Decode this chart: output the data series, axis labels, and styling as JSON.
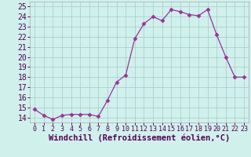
{
  "x": [
    0,
    1,
    2,
    3,
    4,
    5,
    6,
    7,
    8,
    9,
    10,
    11,
    12,
    13,
    14,
    15,
    16,
    17,
    18,
    19,
    20,
    21,
    22,
    23
  ],
  "y": [
    14.8,
    14.2,
    13.8,
    14.2,
    14.3,
    14.3,
    14.3,
    14.1,
    15.7,
    17.5,
    18.2,
    21.8,
    23.3,
    24.0,
    23.6,
    24.7,
    24.5,
    24.2,
    24.1,
    24.7,
    22.2,
    20.0,
    18.0,
    18.0
  ],
  "line_color": "#993399",
  "marker": "D",
  "marker_size": 2.5,
  "bg_color": "#d0f0ec",
  "grid_color": "#aed0cc",
  "xlabel": "Windchill (Refroidissement éolien,°C)",
  "xlabel_fontsize": 7.5,
  "tick_fontsize": 7,
  "ylim": [
    13.5,
    25.5
  ],
  "yticks": [
    14,
    15,
    16,
    17,
    18,
    19,
    20,
    21,
    22,
    23,
    24,
    25
  ],
  "xlim": [
    -0.5,
    23.5
  ],
  "xticks": [
    0,
    1,
    2,
    3,
    4,
    5,
    6,
    7,
    8,
    9,
    10,
    11,
    12,
    13,
    14,
    15,
    16,
    17,
    18,
    19,
    20,
    21,
    22,
    23
  ]
}
